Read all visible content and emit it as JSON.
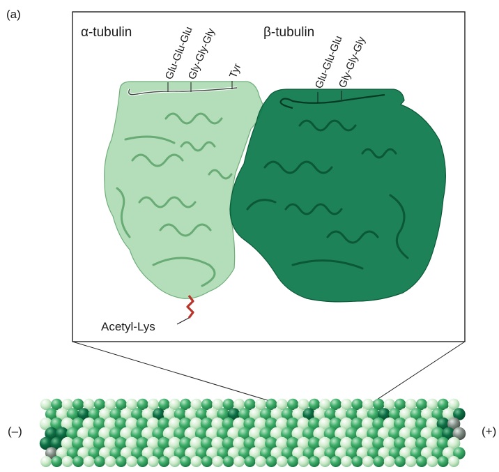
{
  "figure": {
    "panel_label": "(a)",
    "alpha": {
      "title": "α-tubulin",
      "tail_labels": [
        "Glu-Glu-Glu",
        "Gly-Gly-Gly",
        "Tyr"
      ],
      "modification_label": "Acetyl-Lys"
    },
    "beta": {
      "title": "β-tubulin",
      "tail_labels": [
        "Glu-Glu-Glu",
        "Gly-Gly-Gly"
      ]
    },
    "microtubule": {
      "minus_end_label": "(–)",
      "plus_end_label": "(+)"
    }
  },
  "colors": {
    "alpha_surface": "#9fd3a6",
    "alpha_ribbon": "#5fa56b",
    "beta_surface": "#0f7a4e",
    "beta_ribbon": "#0a5a38",
    "acetyl": "#b8352b",
    "bead_light": "#cfeccc",
    "bead_mid": "#3fae6a",
    "bead_dark": "#0d6e44",
    "bead_grey": "#7d8a82"
  }
}
